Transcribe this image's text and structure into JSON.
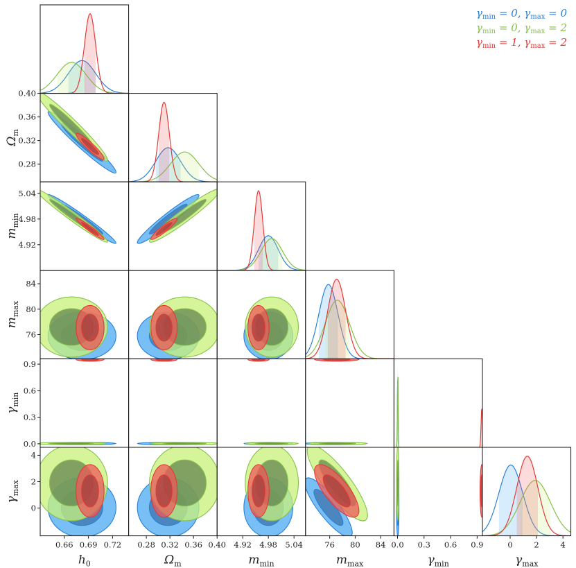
{
  "chart_data": {
    "type": "corner",
    "title": "",
    "params": [
      {
        "symbol": "h",
        "subscript": "0",
        "range": [
          0.63,
          0.74
        ],
        "ticks": [
          0.66,
          0.69,
          0.72
        ],
        "tick_labels": [
          "0.66",
          "0.69",
          "0.72"
        ]
      },
      {
        "symbol": "Ω",
        "subscript": "m",
        "range": [
          0.25,
          0.4
        ],
        "ticks": [
          0.28,
          0.32,
          0.36,
          0.4
        ],
        "tick_labels": [
          "0.28",
          "0.32",
          "0.36",
          "0.40"
        ]
      },
      {
        "symbol": "m",
        "subscript": "min",
        "range": [
          4.86,
          5.067
        ],
        "ticks": [
          4.92,
          4.98,
          5.04
        ],
        "tick_labels": [
          "4.92",
          "4.98",
          "5.04"
        ]
      },
      {
        "symbol": "m",
        "subscript": "max",
        "range": [
          72.2,
          86.1
        ],
        "ticks": [
          76,
          80,
          84
        ],
        "tick_labels": [
          "76",
          "80",
          "84"
        ]
      },
      {
        "symbol": "γ",
        "subscript": "min",
        "range": [
          -0.04,
          0.96
        ],
        "ticks": [
          0.0,
          0.3,
          0.6,
          0.9
        ],
        "tick_labels": [
          "0.0",
          "0.3",
          "0.6",
          "0.9"
        ]
      },
      {
        "symbol": "γ",
        "subscript": "max",
        "range": [
          -2.1,
          4.6
        ],
        "ticks": [
          0,
          2,
          4
        ],
        "tick_labels": [
          "0",
          "2",
          "4"
        ]
      }
    ],
    "series": [
      {
        "name": "γmin = 0, γmax = 0",
        "color": "#2a7fd4",
        "fill": "#4aaaf0",
        "inner": "#3a6ea8",
        "mean": [
          0.682,
          0.317,
          4.98,
          75.8,
          0.003,
          0.05
        ],
        "sigma": [
          0.017,
          0.021,
          0.023,
          1.5,
          0.004,
          0.9
        ],
        "corr": [
          [
            0,
            1,
            -0.97
          ],
          [
            0,
            2,
            -0.98
          ],
          [
            1,
            2,
            0.96
          ],
          [
            3,
            5,
            -0.85
          ]
        ]
      },
      {
        "name": "γmin = 0, γmax = 2",
        "color": "#86c04a",
        "fill": "#c8f27a",
        "inner": "#5d7d4a",
        "mean": [
          0.669,
          0.345,
          4.988,
          77.2,
          0.003,
          1.9
        ],
        "sigma": [
          0.018,
          0.024,
          0.025,
          1.9,
          0.004,
          1.15
        ],
        "corr": [
          [
            0,
            1,
            -0.97
          ],
          [
            0,
            2,
            -0.98
          ],
          [
            1,
            2,
            0.96
          ],
          [
            3,
            5,
            -0.85
          ]
        ]
      },
      {
        "name": "γmin = 1, γmax = 2",
        "color": "#e53935",
        "fill": "#ee5a5a",
        "inner": "#a33a3a",
        "mean": [
          0.692,
          0.31,
          4.957,
          77.1,
          0.953,
          1.3
        ],
        "sigma": [
          0.007,
          0.009,
          0.01,
          1.4,
          0.008,
          0.8
        ],
        "corr": [
          [
            0,
            1,
            -0.93
          ],
          [
            0,
            2,
            -0.96
          ],
          [
            1,
            2,
            0.93
          ],
          [
            3,
            5,
            -0.75
          ]
        ]
      }
    ],
    "legend_position": "top-right",
    "contour_levels": [
      "1σ",
      "2σ"
    ]
  }
}
